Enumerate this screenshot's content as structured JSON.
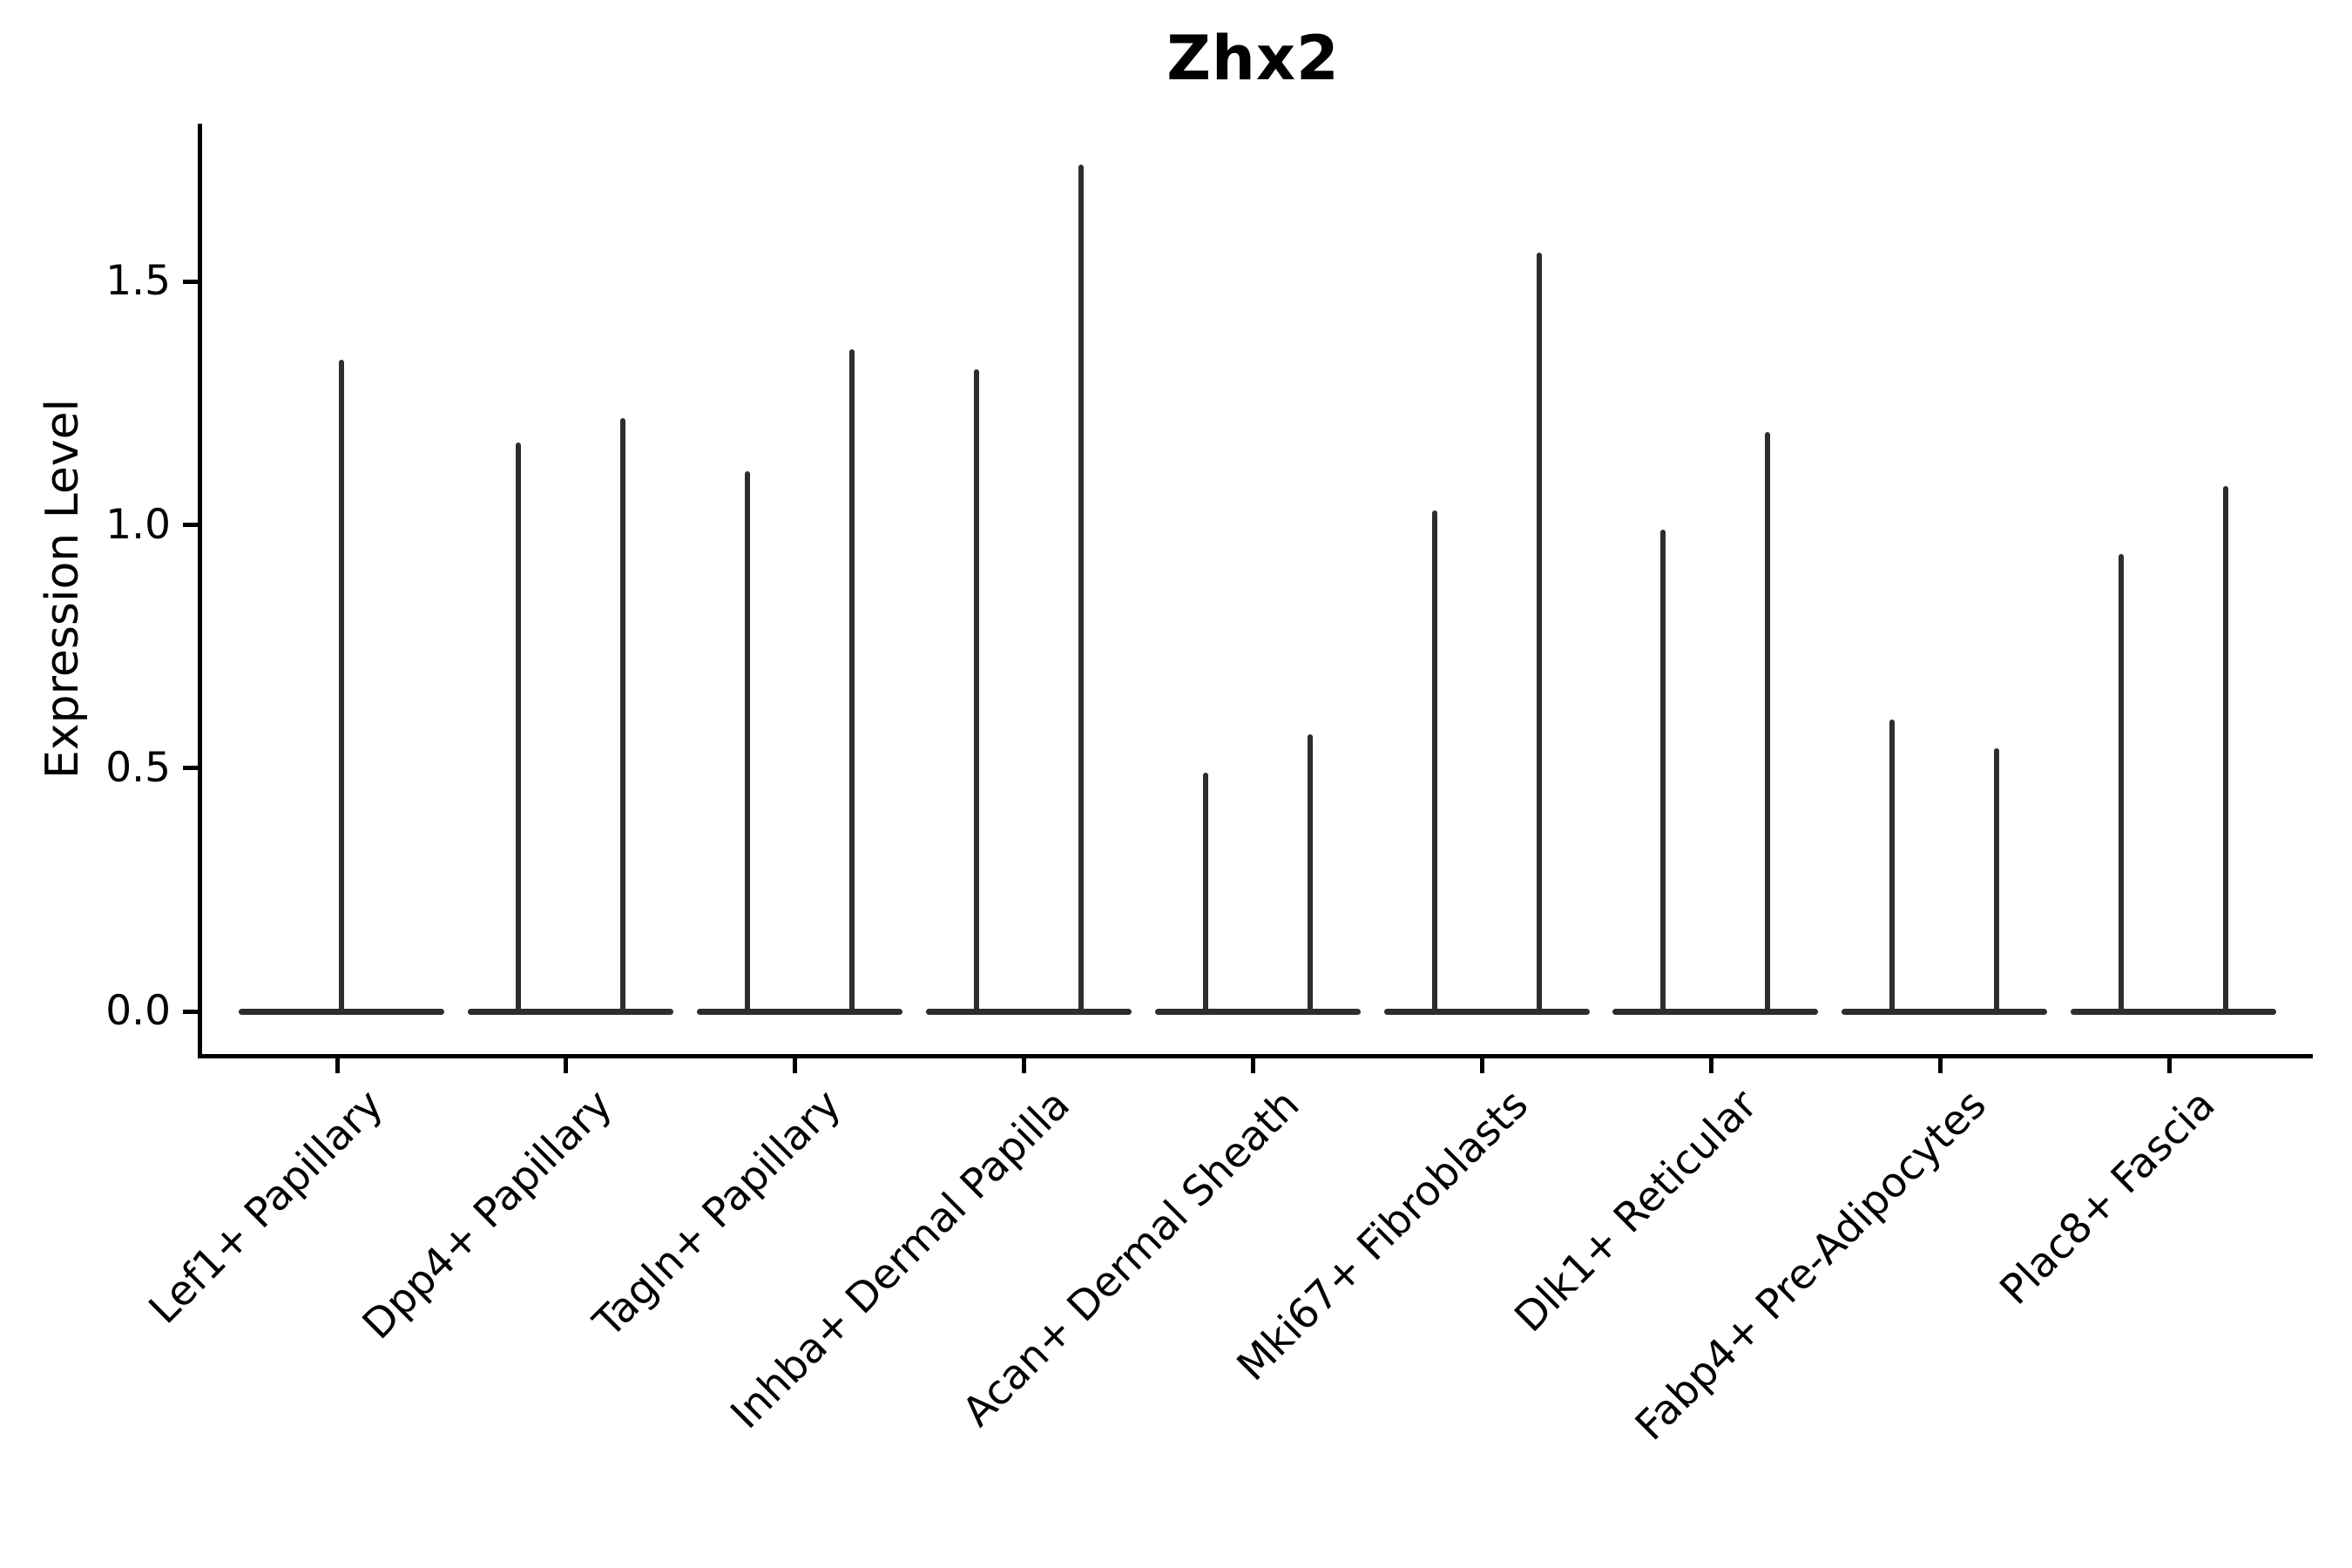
{
  "figure": {
    "title": "Zhx2",
    "ylabel": "Expression Level"
  },
  "colors": {
    "violin": "#2d2d2d",
    "axis": "#000000",
    "text": "#000000",
    "background": "#ffffff"
  },
  "chart_data": {
    "type": "violin",
    "title": "Zhx2",
    "xlabel": "",
    "ylabel": "Expression Level",
    "ylim": [
      -0.09,
      1.82
    ],
    "yticks": [
      0.0,
      0.5,
      1.0,
      1.5
    ],
    "ytick_labels": [
      "0.0",
      "0.5",
      "1.0",
      "1.5"
    ],
    "grid": false,
    "legend": "none",
    "baseline_value": 0.0,
    "shape_note": "needle violins: flat dense mass at expression 0 spanning each category, with one or two thin spikes rising to the peak value; single-violin categories have a centered spike, two-violin categories have spikes at the quarter positions",
    "categories": [
      "Lef1+ Papillary",
      "Dpp4+ Papillary",
      "Tagln+ Papillary",
      "Inhba+ Dermal Papilla",
      "Acan+ Dermal Sheath",
      "Mki67+ Fibroblasts",
      "Dlk1+ Reticular",
      "Fabp4+ Pre-Adipocytes",
      "Plac8+ Fascia"
    ],
    "violins": [
      {
        "category": "Lef1+ Papillary",
        "peaks": [
          1.34
        ]
      },
      {
        "category": "Dpp4+ Papillary",
        "peaks": [
          1.17,
          1.22
        ]
      },
      {
        "category": "Tagln+ Papillary",
        "peaks": [
          1.11,
          1.36
        ]
      },
      {
        "category": "Inhba+ Dermal Papilla",
        "peaks": [
          1.32,
          1.74
        ]
      },
      {
        "category": "Acan+ Dermal Sheath",
        "peaks": [
          0.49,
          0.57
        ]
      },
      {
        "category": "Mki67+ Fibroblasts",
        "peaks": [
          1.03,
          1.56
        ]
      },
      {
        "category": "Dlk1+ Reticular",
        "peaks": [
          0.99,
          1.19
        ]
      },
      {
        "category": "Fabp4+ Pre-Adipocytes",
        "peaks": [
          0.6,
          0.54
        ]
      },
      {
        "category": "Plac8+ Fascia",
        "peaks": [
          0.94,
          1.08
        ]
      }
    ]
  }
}
